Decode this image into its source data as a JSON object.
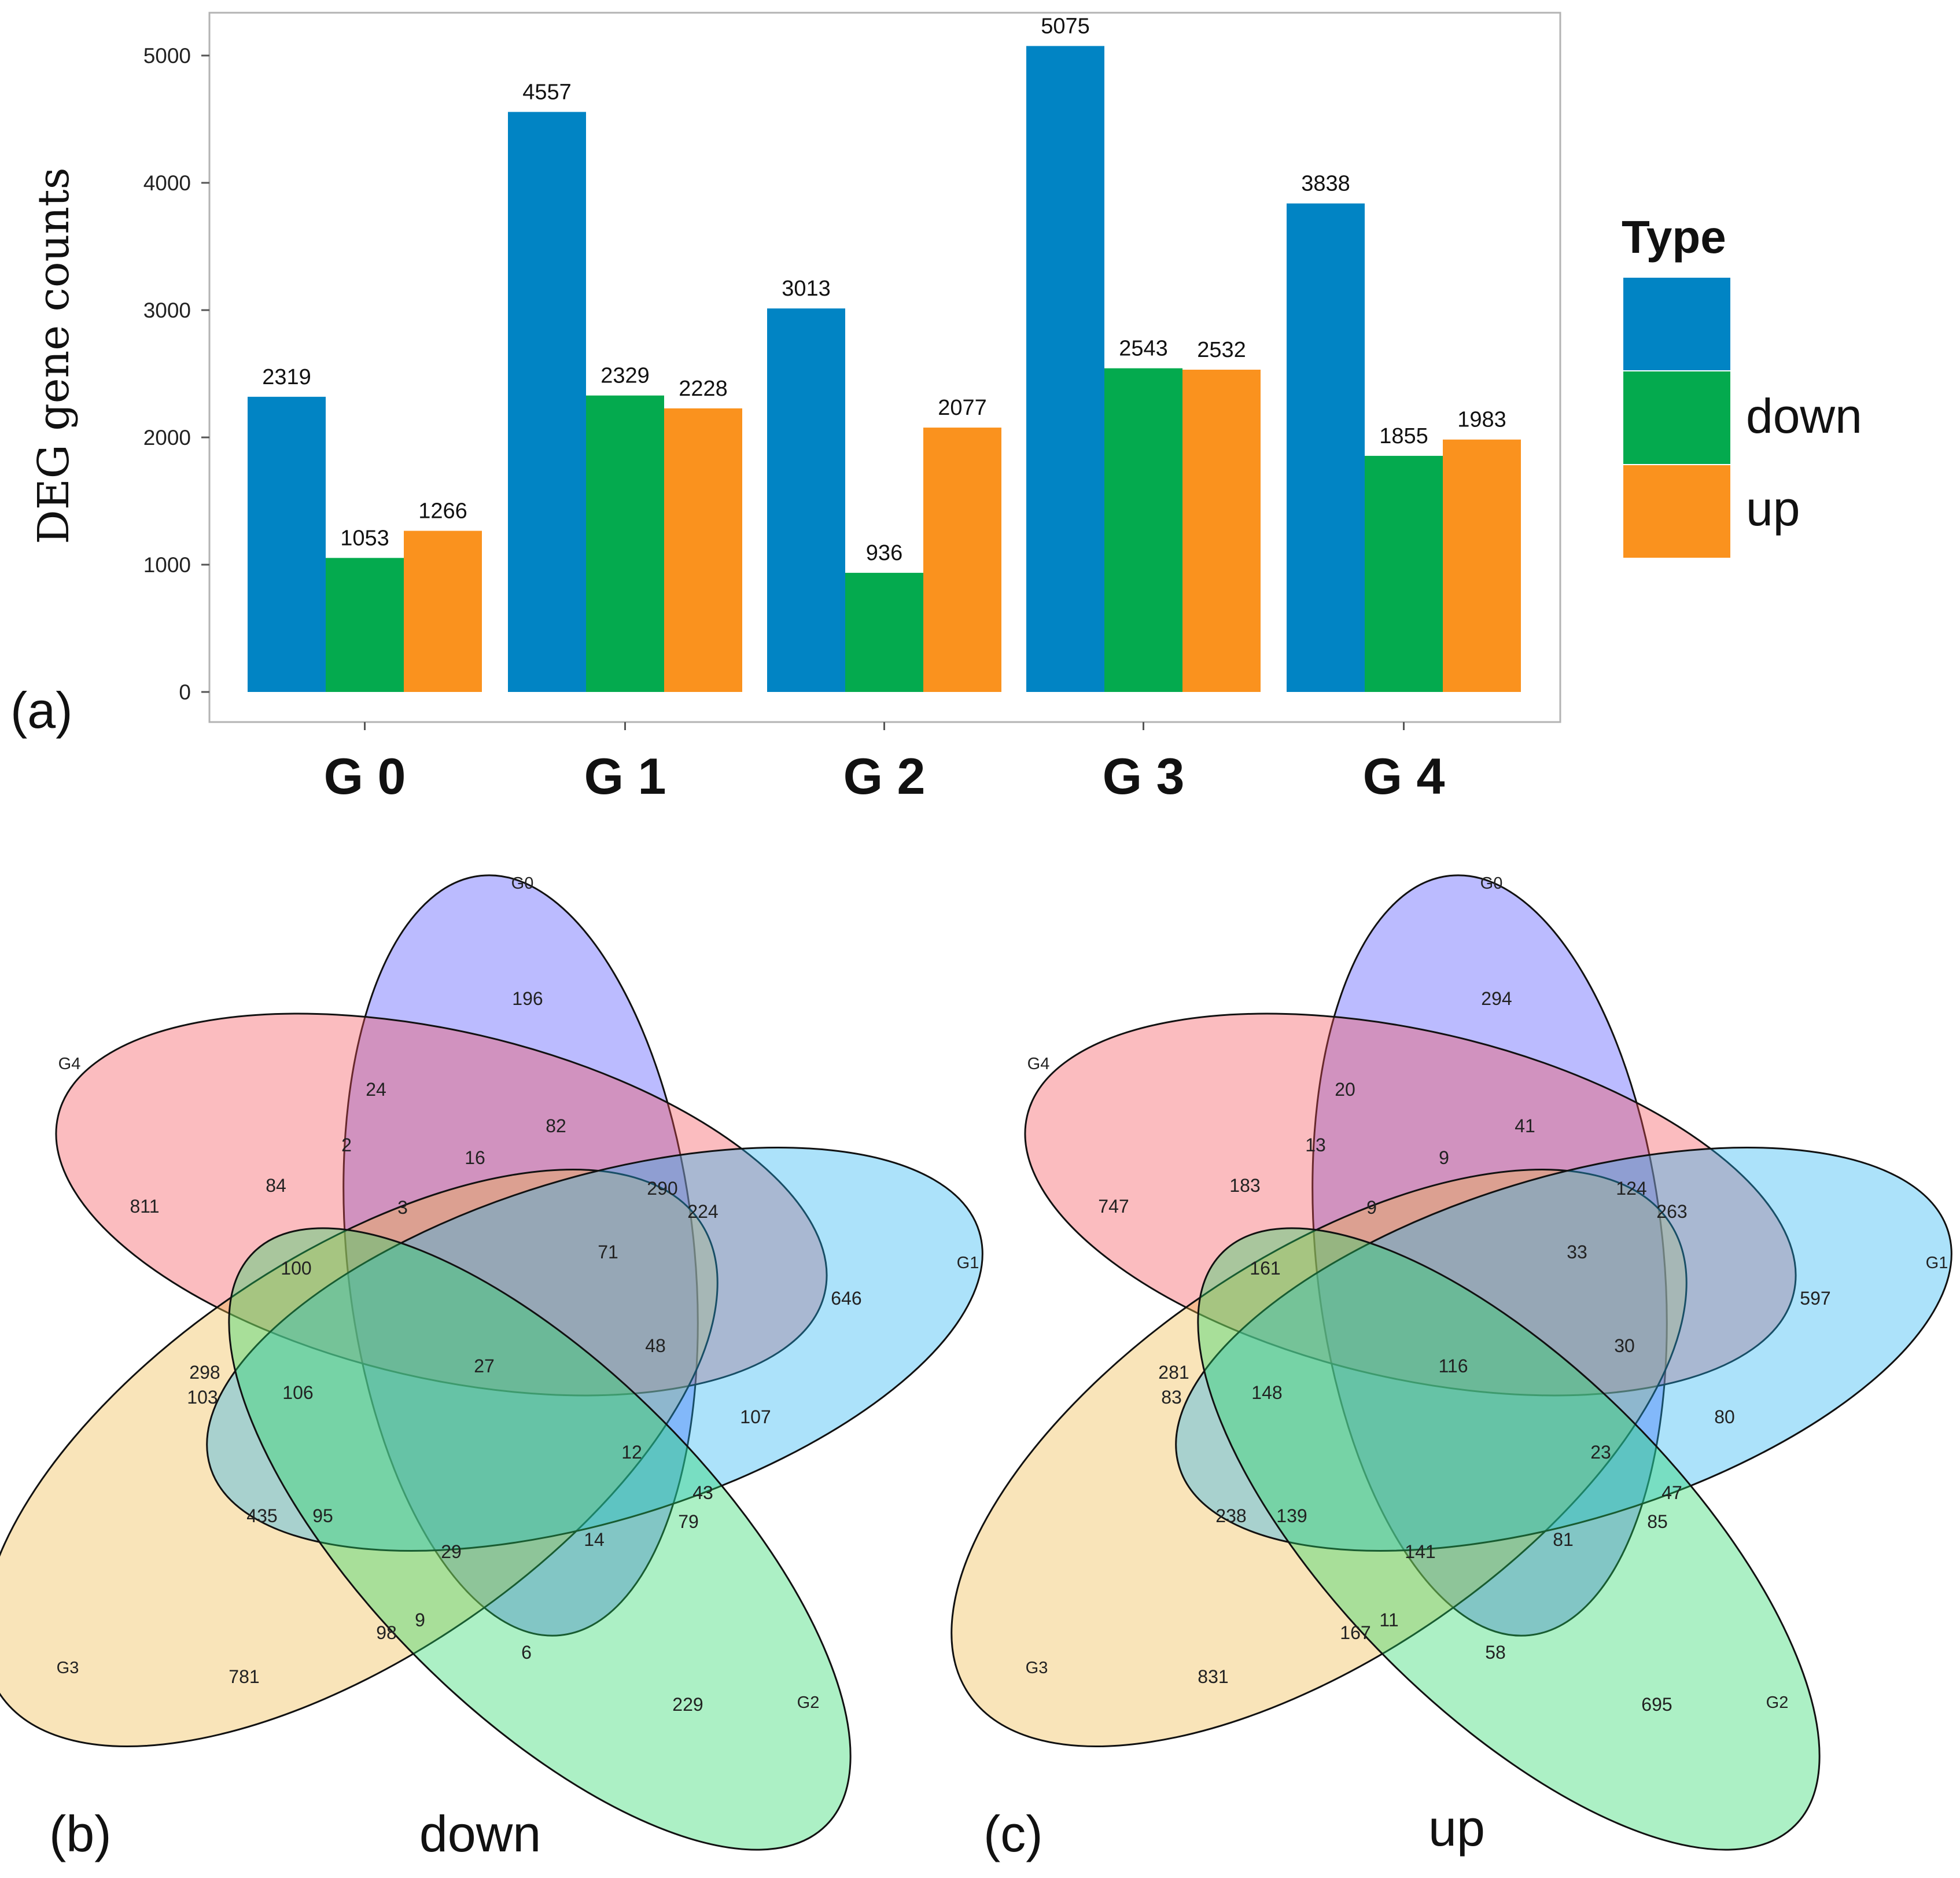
{
  "panels": {
    "a": "(a)",
    "b": "(b)",
    "c": "(c)"
  },
  "colors": {
    "all": "#0184c4",
    "down": "#04aa4e",
    "up": "#fa921e"
  },
  "set_colors": {
    "G0": "#4b4bff",
    "G1": "#26b3f2",
    "G2": "#24d866",
    "G3": "#eeb746",
    "G4": "#f44e58"
  },
  "chart_data": [
    {
      "type": "bar",
      "panel": "(a)",
      "title": "",
      "xlabel": "",
      "ylabel": "DEG gene counts",
      "ylim": [
        0,
        5350
      ],
      "yticks": [
        0,
        1000,
        2000,
        3000,
        4000,
        5000
      ],
      "categories": [
        "G 0",
        "G 1",
        "G 2",
        "G 3",
        "G 4"
      ],
      "legend_title": "Type",
      "legend_position": "right",
      "series": [
        {
          "name": "",
          "values": [
            2319,
            4557,
            3013,
            5075,
            3838
          ]
        },
        {
          "name": "down",
          "values": [
            1053,
            2329,
            936,
            2543,
            1855
          ]
        },
        {
          "name": "up",
          "values": [
            1266,
            2228,
            2077,
            2532,
            1983
          ]
        }
      ]
    },
    {
      "type": "venn",
      "panel": "(b)",
      "title": "down",
      "sets": [
        "G0",
        "G1",
        "G2",
        "G3",
        "G4"
      ],
      "regions": [
        {
          "sets": "G0",
          "value": "196"
        },
        {
          "sets": "G1",
          "value": "646"
        },
        {
          "sets": "G2",
          "value": "229"
        },
        {
          "sets": "G3",
          "value": "781"
        },
        {
          "sets": "G4",
          "value": "811"
        },
        {
          "sets": "G0∩G4",
          "value": "24"
        },
        {
          "sets": "G0∩G3∩G4",
          "value": "2"
        },
        {
          "sets": "G0∩G1∩G4",
          "value": "16"
        },
        {
          "sets": "G0∩G1∩G3",
          "value": "82"
        },
        {
          "sets": "G3∩G4",
          "value": "84"
        },
        {
          "sets": "G0∩G1∩G3∩G4",
          "value": "3"
        },
        {
          "sets": "G0∩G1",
          "value": "290"
        },
        {
          "sets": "G1∩G4",
          "value": "224"
        },
        {
          "sets": "G1∩G3∩G4",
          "value": "100"
        },
        {
          "sets": "G0∩G1∩G2∩G4",
          "value": "71"
        },
        {
          "sets": "G2∩G4",
          "value": "298"
        },
        {
          "sets": "G2∩G3∩G4",
          "value": "103"
        },
        {
          "sets": "G1∩G2∩G3∩G4",
          "value": "106"
        },
        {
          "sets": "G0∩G1∩G2∩G3∩G4",
          "value": "27"
        },
        {
          "sets": "G0∩G1∩G2",
          "value": "48"
        },
        {
          "sets": "G1∩G2∩G4",
          "value": "107"
        },
        {
          "sets": "G0∩G1∩G2∩G3",
          "value": "12"
        },
        {
          "sets": "G0∩G2∩G3",
          "value": "43"
        },
        {
          "sets": "G2∩G3",
          "value": "435"
        },
        {
          "sets": "G1∩G2∩G3",
          "value": "95"
        },
        {
          "sets": "G0∩G2∩G3∩G4",
          "value": "29"
        },
        {
          "sets": "G0∩G2∩G4",
          "value": "14"
        },
        {
          "sets": "G0∩G2",
          "value": "79"
        },
        {
          "sets": "G1∩G2",
          "value": "9"
        },
        {
          "sets": "G0∩G3",
          "value": "98"
        },
        {
          "sets": "G1∩G3",
          "value": "6"
        }
      ]
    },
    {
      "type": "venn",
      "panel": "(c)",
      "title": "up",
      "sets": [
        "G0",
        "G1",
        "G2",
        "G3",
        "G4"
      ],
      "regions": [
        {
          "sets": "G0",
          "value": "294"
        },
        {
          "sets": "G1",
          "value": "597"
        },
        {
          "sets": "G2",
          "value": "695"
        },
        {
          "sets": "G3",
          "value": "831"
        },
        {
          "sets": "G4",
          "value": "747"
        },
        {
          "sets": "G0∩G4",
          "value": "20"
        },
        {
          "sets": "G0∩G3∩G4",
          "value": "13"
        },
        {
          "sets": "G0∩G1∩G4",
          "value": "9"
        },
        {
          "sets": "G0∩G1∩G3",
          "value": "41"
        },
        {
          "sets": "G3∩G4",
          "value": "183"
        },
        {
          "sets": "G0∩G1∩G3∩G4",
          "value": "9"
        },
        {
          "sets": "G0∩G1",
          "value": "124"
        },
        {
          "sets": "G1∩G4",
          "value": "263"
        },
        {
          "sets": "G1∩G3∩G4",
          "value": "161"
        },
        {
          "sets": "G0∩G1∩G2∩G4",
          "value": "33"
        },
        {
          "sets": "G2∩G4",
          "value": "281"
        },
        {
          "sets": "G2∩G3∩G4",
          "value": "83"
        },
        {
          "sets": "G1∩G2∩G3∩G4",
          "value": "148"
        },
        {
          "sets": "G0∩G1∩G2∩G3∩G4",
          "value": "116"
        },
        {
          "sets": "G0∩G1∩G2",
          "value": "30"
        },
        {
          "sets": "G1∩G2∩G4",
          "value": "80"
        },
        {
          "sets": "G0∩G1∩G2∩G3",
          "value": "23"
        },
        {
          "sets": "G0∩G2∩G3",
          "value": "47"
        },
        {
          "sets": "G2∩G3",
          "value": "238"
        },
        {
          "sets": "G1∩G2∩G3",
          "value": "139"
        },
        {
          "sets": "G0∩G2∩G3∩G4",
          "value": "141"
        },
        {
          "sets": "G0∩G2∩G4",
          "value": "81"
        },
        {
          "sets": "G0∩G2",
          "value": "85"
        },
        {
          "sets": "G1∩G2",
          "value": "11"
        },
        {
          "sets": "G0∩G3",
          "value": "167"
        },
        {
          "sets": "G1∩G3",
          "value": "58"
        }
      ]
    }
  ]
}
